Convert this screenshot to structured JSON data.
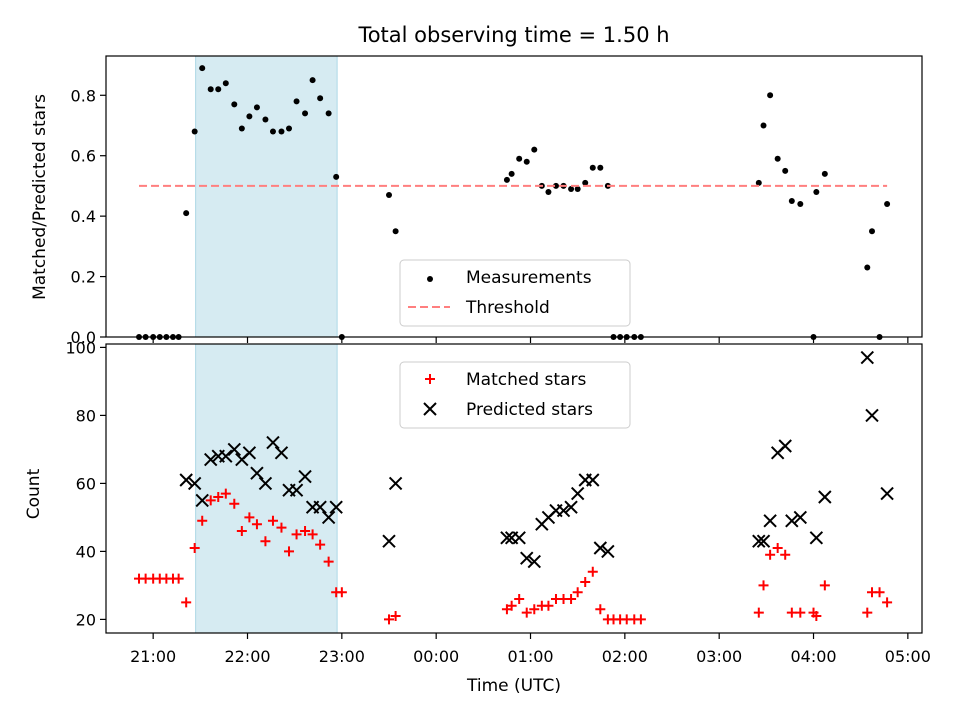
{
  "chart_data": [
    {
      "type": "scatter",
      "title": "Total observing time = 1.50 h",
      "xlabel": "",
      "ylabel": "Matched/Predicted stars",
      "x_unit": "hours since 21:00 UTC",
      "xlim": [
        -0.5,
        8.15
      ],
      "ylim": [
        0,
        0.93
      ],
      "yticks": [
        "0.0",
        "0.2",
        "0.4",
        "0.6",
        "0.8"
      ],
      "highlight_span": [
        0.45,
        1.95
      ],
      "highlight_color": "#add8e6",
      "series": [
        {
          "name": "Measurements",
          "marker": "dot",
          "color": "#000000",
          "points": [
            [
              -0.15,
              0.0
            ],
            [
              -0.08,
              0.0
            ],
            [
              0.0,
              0.0
            ],
            [
              0.07,
              0.0
            ],
            [
              0.14,
              0.0
            ],
            [
              0.21,
              0.0
            ],
            [
              0.27,
              0.0
            ],
            [
              0.35,
              0.41
            ],
            [
              0.44,
              0.68
            ],
            [
              0.52,
              0.89
            ],
            [
              0.61,
              0.82
            ],
            [
              0.69,
              0.82
            ],
            [
              0.77,
              0.84
            ],
            [
              0.86,
              0.77
            ],
            [
              0.94,
              0.69
            ],
            [
              1.02,
              0.73
            ],
            [
              1.1,
              0.76
            ],
            [
              1.19,
              0.72
            ],
            [
              1.27,
              0.68
            ],
            [
              1.36,
              0.68
            ],
            [
              1.44,
              0.69
            ],
            [
              1.52,
              0.78
            ],
            [
              1.61,
              0.74
            ],
            [
              1.69,
              0.85
            ],
            [
              1.77,
              0.79
            ],
            [
              1.86,
              0.74
            ],
            [
              1.94,
              0.53
            ],
            [
              2.0,
              0.0
            ],
            [
              2.5,
              0.47
            ],
            [
              2.57,
              0.35
            ],
            [
              3.75,
              0.52
            ],
            [
              3.8,
              0.54
            ],
            [
              3.88,
              0.59
            ],
            [
              3.96,
              0.58
            ],
            [
              4.04,
              0.62
            ],
            [
              4.12,
              0.5
            ],
            [
              4.19,
              0.48
            ],
            [
              4.27,
              0.5
            ],
            [
              4.35,
              0.5
            ],
            [
              4.43,
              0.49
            ],
            [
              4.5,
              0.49
            ],
            [
              4.58,
              0.51
            ],
            [
              4.66,
              0.56
            ],
            [
              4.74,
              0.56
            ],
            [
              4.82,
              0.5
            ],
            [
              4.88,
              0.0
            ],
            [
              4.95,
              0.0
            ],
            [
              5.02,
              0.0
            ],
            [
              5.1,
              0.0
            ],
            [
              5.17,
              0.0
            ],
            [
              6.42,
              0.51
            ],
            [
              6.47,
              0.7
            ],
            [
              6.54,
              0.8
            ],
            [
              6.62,
              0.59
            ],
            [
              6.7,
              0.55
            ],
            [
              6.77,
              0.45
            ],
            [
              6.86,
              0.44
            ],
            [
              7.0,
              0.0
            ],
            [
              7.03,
              0.48
            ],
            [
              7.12,
              0.54
            ],
            [
              7.57,
              0.23
            ],
            [
              7.62,
              0.35
            ],
            [
              7.7,
              0.0
            ],
            [
              7.78,
              0.44
            ]
          ]
        },
        {
          "name": "Threshold",
          "marker": "dashed-line",
          "color": "#ff7f7f",
          "line": [
            [
              -0.15,
              0.5
            ],
            [
              7.78,
              0.5
            ]
          ]
        }
      ],
      "legend": "lower-center"
    },
    {
      "type": "scatter",
      "xlabel": "Time (UTC)",
      "ylabel": "Count",
      "x_unit": "hours since 21:00 UTC",
      "xlim": [
        -0.5,
        8.15
      ],
      "ylim": [
        16,
        101
      ],
      "xticks": [
        "21:00",
        "22:00",
        "23:00",
        "00:00",
        "01:00",
        "02:00",
        "03:00",
        "04:00",
        "05:00"
      ],
      "yticks": [
        "20",
        "40",
        "60",
        "80",
        "100"
      ],
      "highlight_span": [
        0.45,
        1.95
      ],
      "highlight_color": "#add8e6",
      "series": [
        {
          "name": "Matched stars",
          "marker": "plus",
          "color": "#ff0000",
          "points": [
            [
              -0.15,
              32
            ],
            [
              -0.08,
              32
            ],
            [
              0.0,
              32
            ],
            [
              0.07,
              32
            ],
            [
              0.14,
              32
            ],
            [
              0.21,
              32
            ],
            [
              0.27,
              32
            ],
            [
              0.35,
              25
            ],
            [
              0.44,
              41
            ],
            [
              0.52,
              49
            ],
            [
              0.61,
              55
            ],
            [
              0.69,
              56
            ],
            [
              0.77,
              57
            ],
            [
              0.86,
              54
            ],
            [
              0.94,
              46
            ],
            [
              1.02,
              50
            ],
            [
              1.1,
              48
            ],
            [
              1.19,
              43
            ],
            [
              1.27,
              49
            ],
            [
              1.36,
              47
            ],
            [
              1.44,
              40
            ],
            [
              1.52,
              45
            ],
            [
              1.61,
              46
            ],
            [
              1.69,
              45
            ],
            [
              1.77,
              42
            ],
            [
              1.86,
              37
            ],
            [
              1.94,
              28
            ],
            [
              2.0,
              28
            ],
            [
              2.5,
              20
            ],
            [
              2.57,
              21
            ],
            [
              3.75,
              23
            ],
            [
              3.8,
              24
            ],
            [
              3.88,
              26
            ],
            [
              3.96,
              22
            ],
            [
              4.04,
              23
            ],
            [
              4.12,
              24
            ],
            [
              4.19,
              24
            ],
            [
              4.27,
              26
            ],
            [
              4.35,
              26
            ],
            [
              4.43,
              26
            ],
            [
              4.5,
              28
            ],
            [
              4.58,
              31
            ],
            [
              4.66,
              34
            ],
            [
              4.74,
              23
            ],
            [
              4.82,
              20
            ],
            [
              4.88,
              20
            ],
            [
              4.95,
              20
            ],
            [
              5.02,
              20
            ],
            [
              5.1,
              20
            ],
            [
              5.17,
              20
            ],
            [
              6.42,
              22
            ],
            [
              6.47,
              30
            ],
            [
              6.54,
              39
            ],
            [
              6.62,
              41
            ],
            [
              6.7,
              39
            ],
            [
              6.77,
              22
            ],
            [
              6.86,
              22
            ],
            [
              7.0,
              22
            ],
            [
              7.03,
              21
            ],
            [
              7.12,
              30
            ],
            [
              7.57,
              22
            ],
            [
              7.62,
              28
            ],
            [
              7.7,
              28
            ],
            [
              7.78,
              25
            ]
          ]
        },
        {
          "name": "Predicted stars",
          "marker": "x",
          "color": "#000000",
          "points": [
            [
              0.35,
              61
            ],
            [
              0.44,
              60
            ],
            [
              0.52,
              55
            ],
            [
              0.61,
              67
            ],
            [
              0.69,
              68
            ],
            [
              0.77,
              68
            ],
            [
              0.86,
              70
            ],
            [
              0.94,
              67
            ],
            [
              1.02,
              69
            ],
            [
              1.1,
              63
            ],
            [
              1.19,
              60
            ],
            [
              1.27,
              72
            ],
            [
              1.36,
              69
            ],
            [
              1.44,
              58
            ],
            [
              1.52,
              58
            ],
            [
              1.61,
              62
            ],
            [
              1.69,
              53
            ],
            [
              1.77,
              53
            ],
            [
              1.86,
              50
            ],
            [
              1.94,
              53
            ],
            [
              2.5,
              43
            ],
            [
              2.57,
              60
            ],
            [
              3.75,
              44
            ],
            [
              3.8,
              44
            ],
            [
              3.88,
              44
            ],
            [
              3.96,
              38
            ],
            [
              4.04,
              37
            ],
            [
              4.12,
              48
            ],
            [
              4.19,
              50
            ],
            [
              4.27,
              52
            ],
            [
              4.35,
              52
            ],
            [
              4.43,
              53
            ],
            [
              4.5,
              57
            ],
            [
              4.58,
              61
            ],
            [
              4.66,
              61
            ],
            [
              4.74,
              41
            ],
            [
              4.82,
              40
            ],
            [
              6.42,
              43
            ],
            [
              6.47,
              43
            ],
            [
              6.54,
              49
            ],
            [
              6.62,
              69
            ],
            [
              6.7,
              71
            ],
            [
              6.77,
              49
            ],
            [
              6.86,
              50
            ],
            [
              7.03,
              44
            ],
            [
              7.12,
              56
            ],
            [
              7.57,
              97
            ],
            [
              7.62,
              80
            ],
            [
              7.78,
              57
            ]
          ]
        }
      ],
      "legend": "upper-center"
    }
  ]
}
